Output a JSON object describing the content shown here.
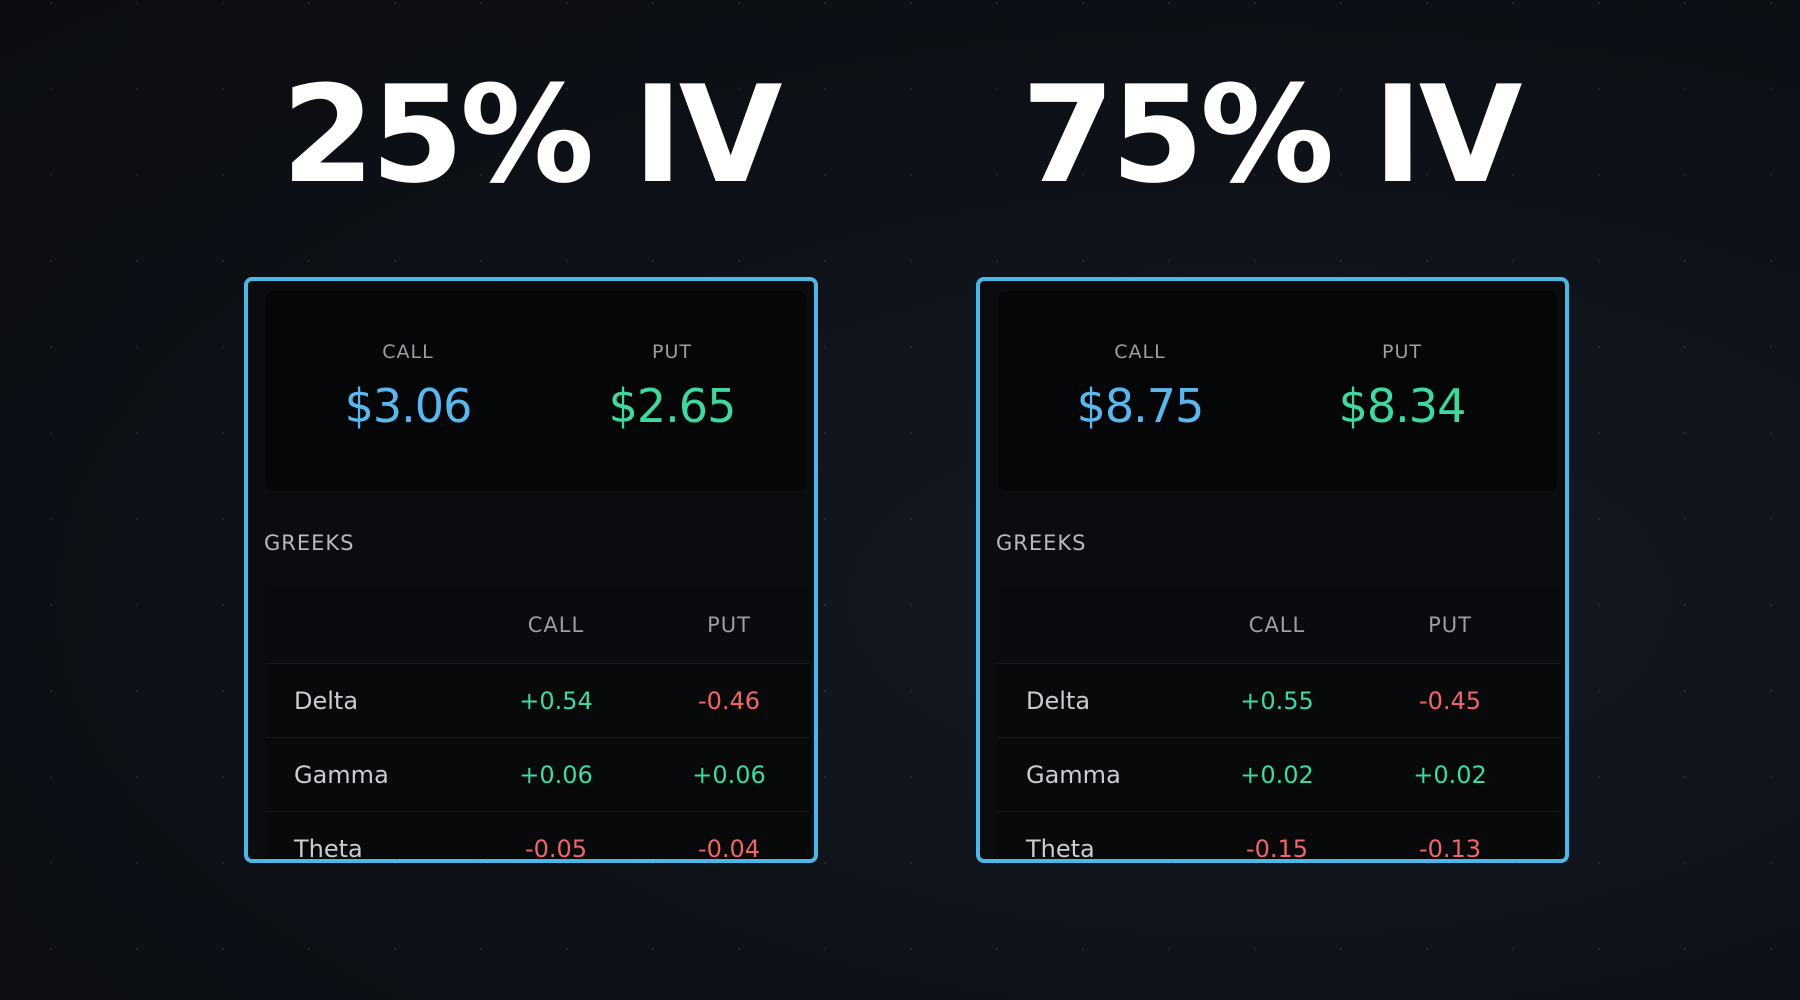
{
  "colors": {
    "panel_border": "#4cb8e8",
    "call_price": "#5bb8ee",
    "put_price": "#3fd8a0",
    "positive": "#3fd8a0",
    "negative": "#f06565"
  },
  "left": {
    "title": "25% IV",
    "prices": {
      "call_label": "CALL",
      "call_value": "$3.06",
      "put_label": "PUT",
      "put_value": "$2.65"
    },
    "greeks_label": "GREEKS",
    "table": {
      "headers": [
        "",
        "CALL",
        "PUT"
      ],
      "rows": [
        {
          "name": "Delta",
          "call": "+0.54",
          "put": "-0.46"
        },
        {
          "name": "Gamma",
          "call": "+0.06",
          "put": "+0.06"
        },
        {
          "name": "Theta",
          "call": "-0.05",
          "put": "-0.04"
        }
      ]
    }
  },
  "right": {
    "title": "75% IV",
    "prices": {
      "call_label": "CALL",
      "call_value": "$8.75",
      "put_label": "PUT",
      "put_value": "$8.34"
    },
    "greeks_label": "GREEKS",
    "table": {
      "headers": [
        "",
        "CALL",
        "PUT"
      ],
      "rows": [
        {
          "name": "Delta",
          "call": "+0.55",
          "put": "-0.45"
        },
        {
          "name": "Gamma",
          "call": "+0.02",
          "put": "+0.02"
        },
        {
          "name": "Theta",
          "call": "-0.15",
          "put": "-0.13"
        }
      ]
    }
  }
}
